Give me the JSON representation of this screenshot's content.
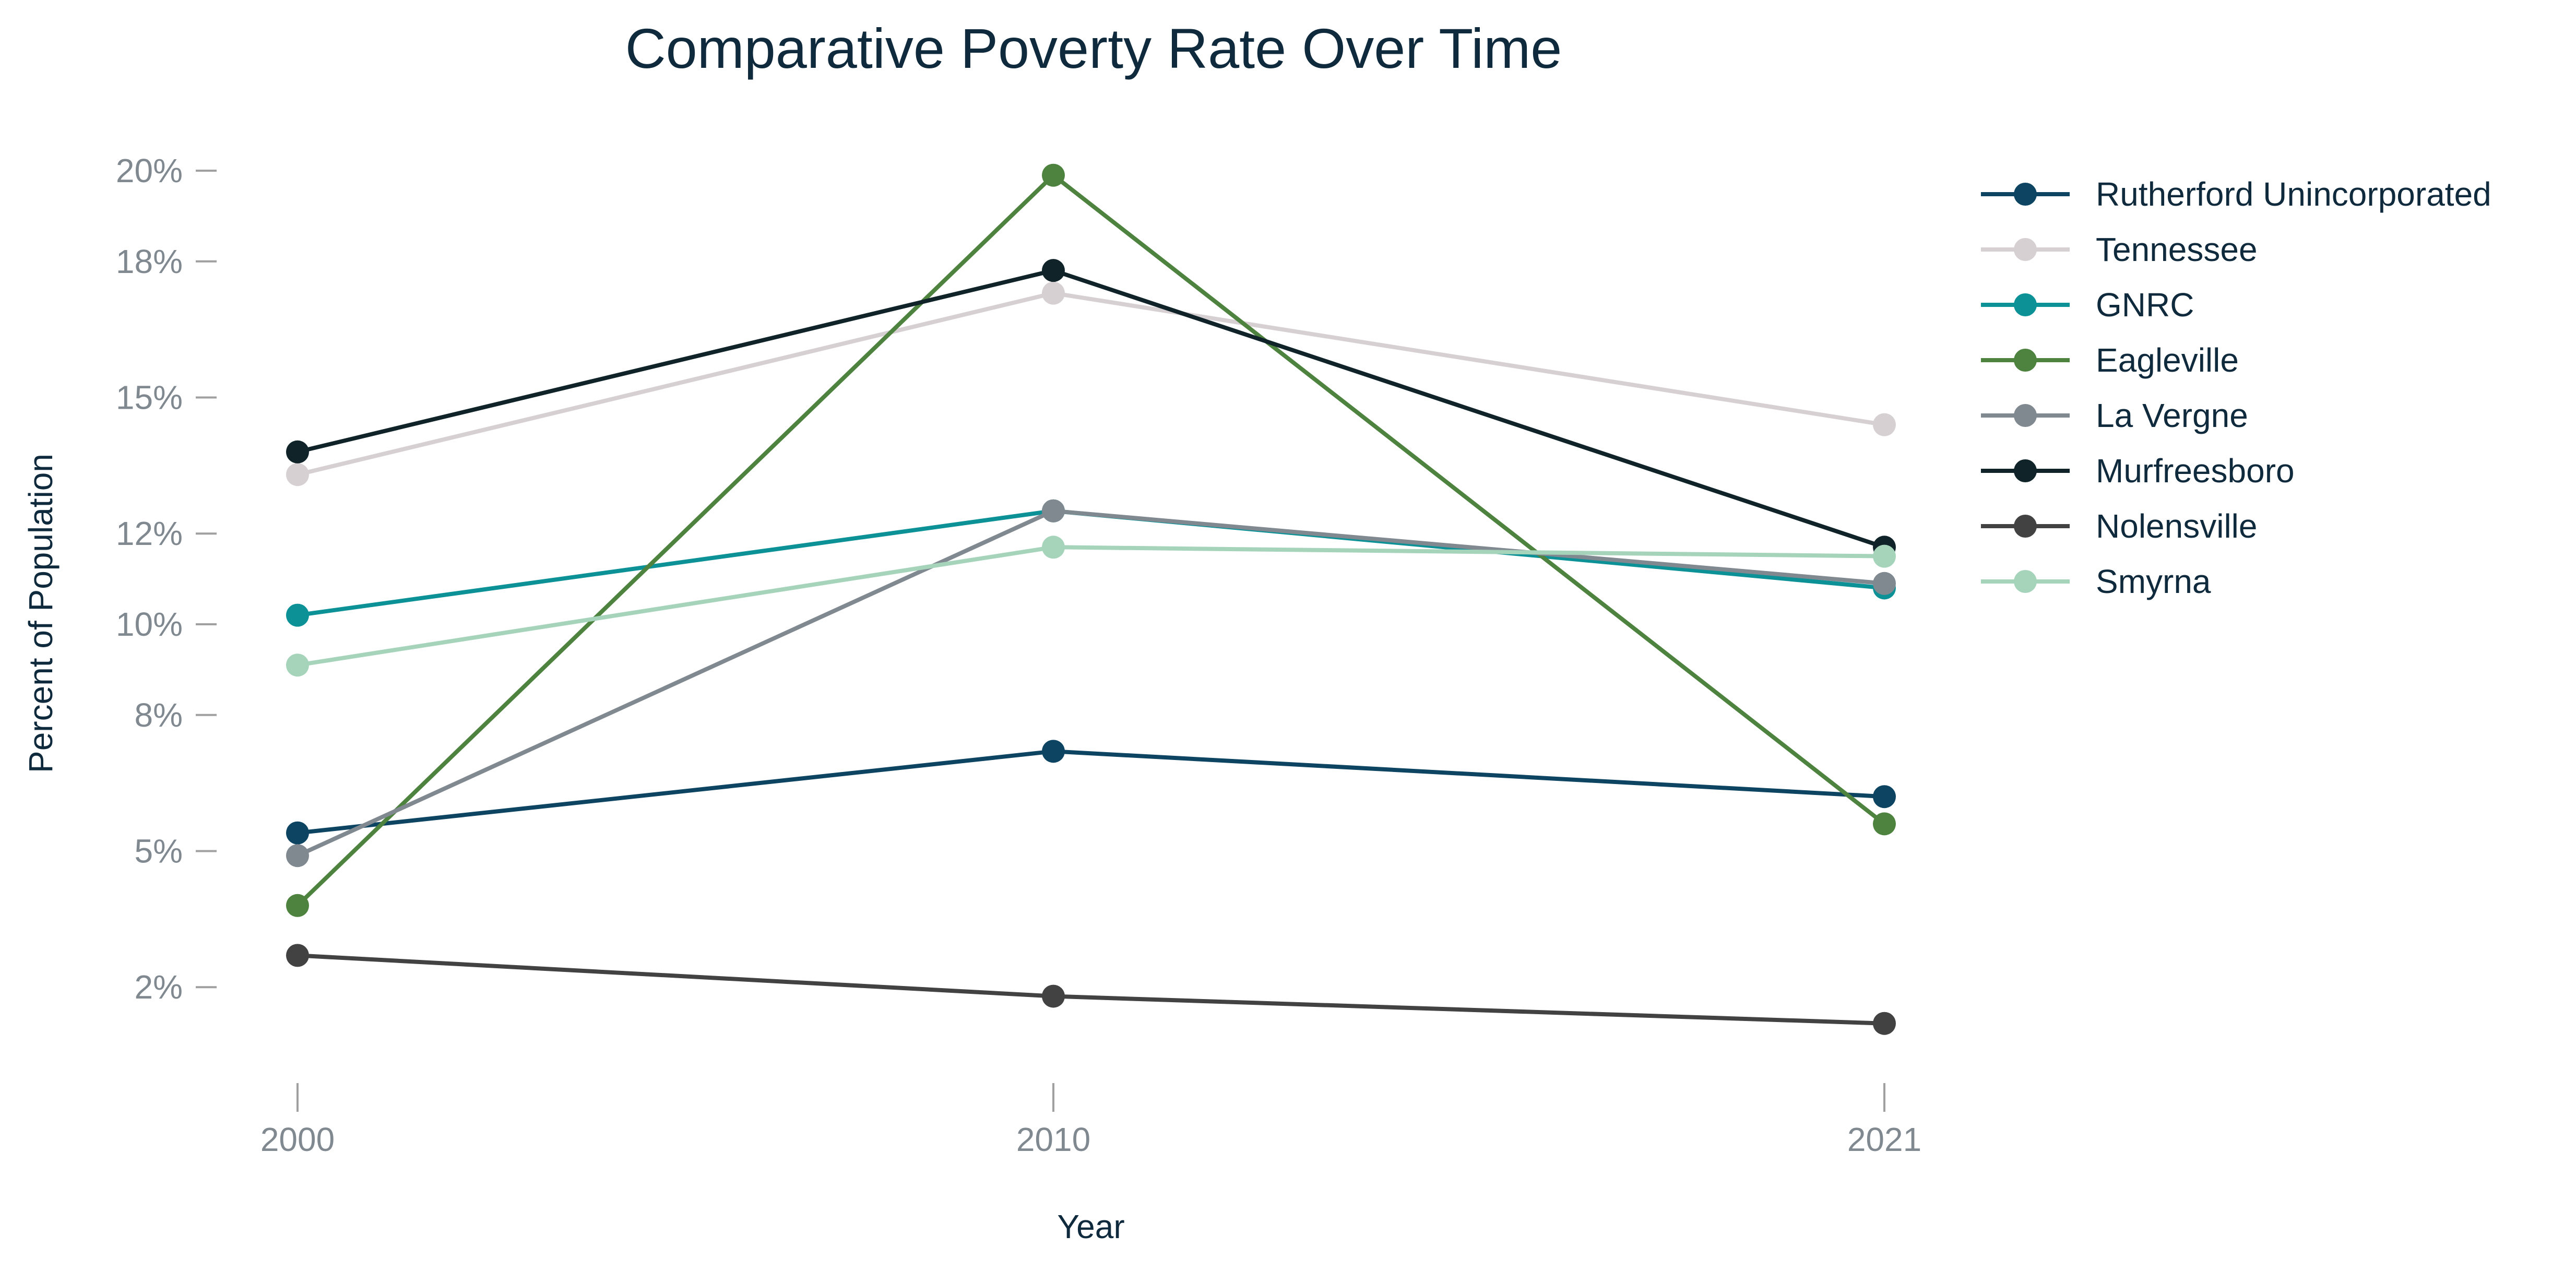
{
  "chart_data": {
    "type": "line",
    "title": "Comparative Poverty Rate Over Time",
    "xlabel": "Year",
    "ylabel": "Percent of Population",
    "x": [
      "2000",
      "2010",
      "2021"
    ],
    "yticks": [
      2,
      5,
      8,
      10,
      12,
      15,
      18,
      20
    ],
    "ytick_labels": [
      "2%",
      "5%",
      "8%",
      "10%",
      "12%",
      "15%",
      "18%",
      "20%"
    ],
    "grid": false,
    "legend": "right",
    "series": [
      {
        "name": "Rutherford Unincorporated",
        "color": "#0d4462",
        "values": [
          5.4,
          7.2,
          6.2
        ]
      },
      {
        "name": "Tennessee",
        "color": "#d6d0d2",
        "values": [
          13.3,
          17.3,
          14.4
        ]
      },
      {
        "name": "GNRC",
        "color": "#0b9196",
        "values": [
          10.2,
          12.5,
          10.8
        ]
      },
      {
        "name": "Eagleville",
        "color": "#4e833f",
        "values": [
          3.8,
          19.9,
          5.6
        ]
      },
      {
        "name": "La Vergne",
        "color": "#808890",
        "values": [
          4.9,
          12.5,
          10.9
        ]
      },
      {
        "name": "Murfreesboro",
        "color": "#0f2329",
        "values": [
          13.8,
          17.8,
          11.7
        ]
      },
      {
        "name": "Nolensville",
        "color": "#424242",
        "values": [
          2.7,
          1.8,
          1.2
        ]
      },
      {
        "name": "Smyrna",
        "color": "#a6d4bb",
        "values": [
          9.1,
          11.7,
          11.5
        ]
      }
    ]
  }
}
